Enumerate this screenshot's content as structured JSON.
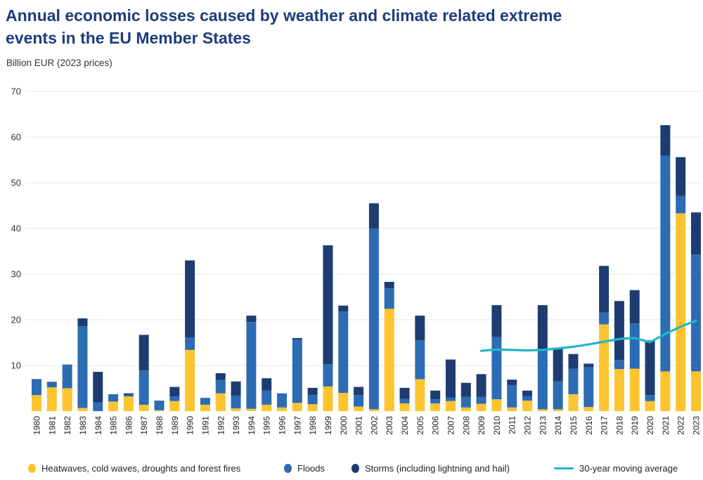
{
  "title": "Annual economic losses caused by weather and climate related extreme events in the EU Member States",
  "subtitle": "Billion EUR (2023 prices)",
  "legend": [
    {
      "label": "Heatwaves, cold waves, droughts and forest fires",
      "color": "#fdc42f",
      "type": "dot"
    },
    {
      "label": "Floods",
      "color": "#2c6cb4",
      "type": "dot"
    },
    {
      "label": "Storms (including lightning and hail)",
      "color": "#1e3c71",
      "type": "dot"
    },
    {
      "label": "30-year moving average",
      "color": "#1fb7ca",
      "type": "line"
    }
  ],
  "colors": {
    "title_blue": "#1d3c7c",
    "heatwaves_yellow": "#fdc42f",
    "floods_blue": "#2c6cb4",
    "storms_navy": "#1e3c71",
    "moving_average_cyan": "#1fb7ca",
    "gridline": "#e4e4e4"
  },
  "chart_data": {
    "type": "bar",
    "stacked": true,
    "title": "Annual economic losses caused by weather and climate related extreme events in the EU Member States",
    "xlabel": "",
    "ylabel": "Billion EUR (2023 prices)",
    "ylim": [
      0,
      70
    ],
    "yticks": [
      10,
      20,
      30,
      40,
      50,
      60,
      70
    ],
    "grid": true,
    "legend_position": "bottom",
    "categories": [
      1980,
      1981,
      1982,
      1983,
      1984,
      1985,
      1986,
      1987,
      1988,
      1989,
      1990,
      1991,
      1992,
      1993,
      1994,
      1995,
      1996,
      1997,
      1998,
      1999,
      2000,
      2001,
      2002,
      2003,
      2004,
      2005,
      2006,
      2007,
      2008,
      2009,
      2010,
      2011,
      2012,
      2013,
      2014,
      2015,
      2016,
      2017,
      2018,
      2019,
      2020,
      2021,
      2022,
      2023
    ],
    "series": [
      {
        "id": "heatwaves",
        "name": "Heatwaves, cold waves, droughts and forest fires",
        "color": "#fdc42f",
        "values": [
          3.5,
          5.2,
          5.0,
          0.7,
          0.0,
          2.1,
          3.2,
          1.4,
          0.2,
          2.2,
          13.4,
          1.4,
          3.9,
          0.6,
          0.5,
          1.4,
          0.8,
          1.8,
          1.5,
          5.4,
          4.0,
          1.0,
          0.4,
          22.4,
          1.7,
          7.0,
          1.7,
          2.2,
          0.8,
          1.6,
          2.6,
          0.8,
          2.3,
          0.4,
          0.4,
          3.7,
          0.9,
          19.0,
          9.2,
          9.3,
          2.2,
          8.7,
          43.3,
          8.7
        ]
      },
      {
        "id": "floods",
        "name": "Floods",
        "color": "#2c6cb4",
        "values": [
          3.3,
          1.0,
          5.2,
          17.9,
          1.9,
          1.6,
          0.4,
          7.5,
          2.1,
          1.0,
          2.7,
          1.5,
          2.9,
          2.8,
          19.0,
          3.1,
          3.1,
          13.9,
          2.0,
          4.9,
          17.8,
          2.5,
          39.6,
          4.5,
          1.0,
          8.5,
          0.9,
          0.8,
          2.3,
          1.5,
          13.6,
          4.9,
          1.0,
          13.2,
          6.1,
          5.6,
          8.7,
          2.6,
          2.0,
          9.9,
          1.3,
          47.2,
          3.8,
          25.6
        ]
      },
      {
        "id": "storms",
        "name": "Storms (including lightning and hail)",
        "color": "#1e3c71",
        "values": [
          0.2,
          0.2,
          0.0,
          1.7,
          6.7,
          0.0,
          0.3,
          7.8,
          0.0,
          2.1,
          16.9,
          0.0,
          1.5,
          3.1,
          1.4,
          2.7,
          0.0,
          0.3,
          1.6,
          26.0,
          1.3,
          1.8,
          5.5,
          1.4,
          2.4,
          5.4,
          1.9,
          8.3,
          3.1,
          5.0,
          7.0,
          1.2,
          1.2,
          9.6,
          7.3,
          3.2,
          0.8,
          10.2,
          12.9,
          7.3,
          12.0,
          6.7,
          8.5,
          9.2
        ]
      }
    ],
    "line_series": {
      "name": "30-year moving average",
      "color": "#1fb7ca",
      "x": [
        2009,
        2010,
        2011,
        2012,
        2013,
        2014,
        2015,
        2016,
        2017,
        2018,
        2019,
        2020,
        2021,
        2022,
        2023
      ],
      "values": [
        13.2,
        13.5,
        13.4,
        13.3,
        13.4,
        13.7,
        14.1,
        14.6,
        15.2,
        15.8,
        16.0,
        15.1,
        16.9,
        18.5,
        19.8
      ]
    }
  }
}
